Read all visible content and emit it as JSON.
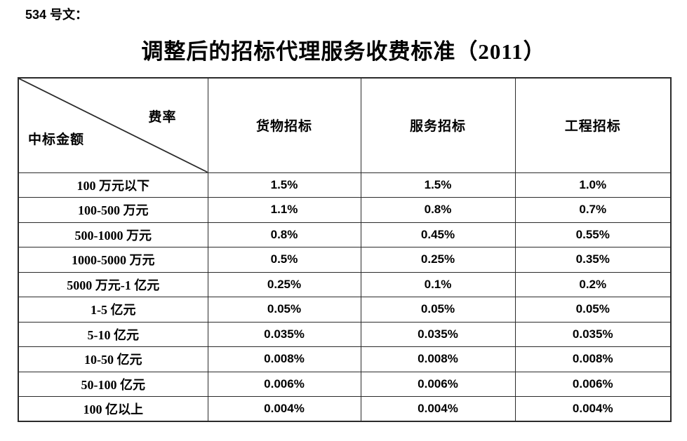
{
  "doc_label": "534 号文：",
  "title": "调整后的招标代理服务收费标准（2011）",
  "table": {
    "corner": {
      "top_right": "费率",
      "bottom_left": "中标金额"
    },
    "columns": [
      "货物招标",
      "服务招标",
      "工程招标"
    ],
    "rows": [
      {
        "label": "100 万元以下",
        "values": [
          "1.5%",
          "1.5%",
          "1.0%"
        ]
      },
      {
        "label": "100-500 万元",
        "values": [
          "1.1%",
          "0.8%",
          "0.7%"
        ]
      },
      {
        "label": "500-1000 万元",
        "values": [
          "0.8%",
          "0.45%",
          "0.55%"
        ]
      },
      {
        "label": "1000-5000 万元",
        "values": [
          "0.5%",
          "0.25%",
          "0.35%"
        ]
      },
      {
        "label": "5000 万元-1 亿元",
        "values": [
          "0.25%",
          "0.1%",
          "0.2%"
        ]
      },
      {
        "label": "1-5 亿元",
        "values": [
          "0.05%",
          "0.05%",
          "0.05%"
        ]
      },
      {
        "label": "5-10 亿元",
        "values": [
          "0.035%",
          "0.035%",
          "0.035%"
        ]
      },
      {
        "label": "10-50 亿元",
        "values": [
          "0.008%",
          "0.008%",
          "0.008%"
        ]
      },
      {
        "label": "50-100 亿元",
        "values": [
          "0.006%",
          "0.006%",
          "0.006%"
        ]
      },
      {
        "label": "100 亿以上",
        "values": [
          "0.004%",
          "0.004%",
          "0.004%"
        ]
      }
    ]
  },
  "colors": {
    "text": "#000000",
    "border": "#2b2b2b",
    "background": "#ffffff"
  }
}
